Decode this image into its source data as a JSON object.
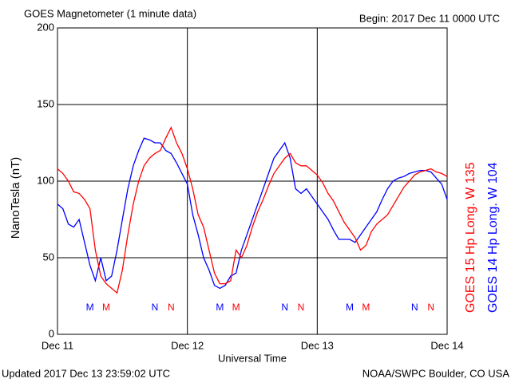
{
  "chart_data": {
    "type": "line",
    "title": "GOES Magnetometer (1 minute data)",
    "subtitle": "Begin:  2017 Dec 11 0000 UTC",
    "ylabel": "NanoTesla (nT)",
    "xlabel": "Universal Time",
    "footer_left": "Updated 2017 Dec 13 23:59:02 UTC",
    "footer_right": "NOAA/SWPC Boulder, CO USA",
    "xlim": [
      0,
      72
    ],
    "xticks": [
      {
        "value": 0,
        "label": "Dec 11"
      },
      {
        "value": 24,
        "label": "Dec 12"
      },
      {
        "value": 48,
        "label": "Dec 13"
      },
      {
        "value": 72,
        "label": "Dec 14"
      }
    ],
    "ylim": [
      0,
      200
    ],
    "yticks": [
      0,
      50,
      100,
      150,
      200
    ],
    "grid": true,
    "x": [
      0,
      1,
      2,
      3,
      4,
      5,
      6,
      7,
      8,
      9,
      10,
      11,
      12,
      13,
      14,
      15,
      16,
      17,
      18,
      19,
      20,
      21,
      22,
      23,
      24,
      25,
      26,
      27,
      28,
      29,
      30,
      31,
      32,
      33,
      34,
      35,
      36,
      37,
      38,
      39,
      40,
      41,
      42,
      43,
      44,
      45,
      46,
      47,
      48,
      49,
      50,
      51,
      52,
      53,
      54,
      55,
      56,
      57,
      58,
      59,
      60,
      61,
      62,
      63,
      64,
      65,
      66,
      67,
      68,
      69,
      70,
      71,
      72
    ],
    "series": [
      {
        "name": "GOES 15 Hp  Long. W 135",
        "color": "#ff0000",
        "values": [
          108,
          105,
          100,
          93,
          92,
          88,
          82,
          55,
          38,
          33,
          30,
          27,
          42,
          65,
          85,
          100,
          110,
          115,
          118,
          120,
          128,
          135,
          125,
          118,
          108,
          95,
          78,
          70,
          55,
          40,
          33,
          33,
          35,
          55,
          50,
          58,
          70,
          80,
          88,
          97,
          105,
          110,
          115,
          118,
          112,
          110,
          110,
          107,
          104,
          99,
          92,
          87,
          80,
          73,
          68,
          63,
          55,
          58,
          67,
          72,
          75,
          78,
          84,
          90,
          96,
          100,
          104,
          106,
          107,
          108,
          106,
          105,
          103
        ]
      },
      {
        "name": "GOES 14 Hp  Long. W 104",
        "color": "#0000ff",
        "values": [
          85,
          82,
          72,
          70,
          75,
          60,
          45,
          35,
          50,
          35,
          38,
          55,
          75,
          95,
          110,
          120,
          128,
          127,
          125,
          125,
          120,
          118,
          112,
          105,
          98,
          78,
          65,
          50,
          42,
          32,
          30,
          32,
          38,
          40,
          55,
          65,
          75,
          85,
          95,
          105,
          115,
          120,
          125,
          115,
          95,
          92,
          95,
          90,
          85,
          80,
          75,
          68,
          62,
          62,
          62,
          60,
          65,
          70,
          75,
          80,
          88,
          95,
          100,
          102,
          103,
          105,
          106,
          107,
          107,
          106,
          102,
          98,
          88
        ]
      }
    ],
    "annotations": [
      {
        "text": "M",
        "x": 6,
        "series": 1
      },
      {
        "text": "M",
        "x": 9,
        "series": 0
      },
      {
        "text": "N",
        "x": 18,
        "series": 1
      },
      {
        "text": "N",
        "x": 21,
        "series": 0
      },
      {
        "text": "M",
        "x": 30,
        "series": 1
      },
      {
        "text": "M",
        "x": 33,
        "series": 0
      },
      {
        "text": "N",
        "x": 42,
        "series": 1
      },
      {
        "text": "N",
        "x": 45,
        "series": 0
      },
      {
        "text": "M",
        "x": 54,
        "series": 1
      },
      {
        "text": "M",
        "x": 57,
        "series": 0
      },
      {
        "text": "N",
        "x": 66,
        "series": 1
      },
      {
        "text": "N",
        "x": 69,
        "series": 0
      }
    ]
  }
}
